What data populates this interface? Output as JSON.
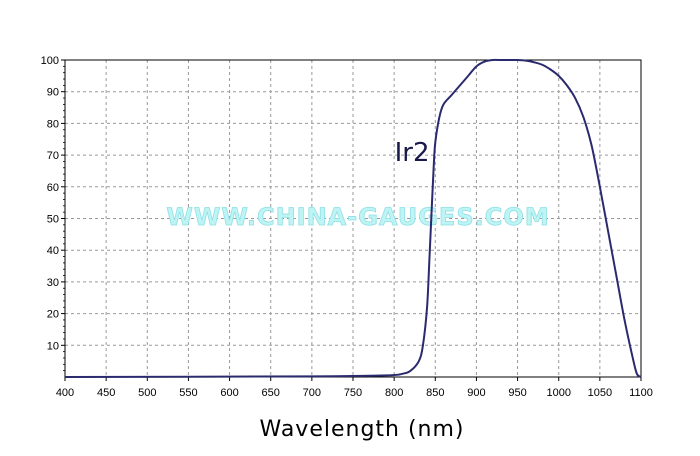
{
  "chart_data": {
    "type": "line",
    "title": "",
    "xlabel": "Wavelength (nm)",
    "ylabel": "",
    "xlim": [
      400,
      1100
    ],
    "ylim": [
      0,
      100
    ],
    "x_ticks": [
      400,
      450,
      500,
      550,
      600,
      650,
      700,
      750,
      800,
      850,
      900,
      950,
      1000,
      1050,
      1100
    ],
    "y_ticks": [
      10,
      20,
      30,
      40,
      50,
      60,
      70,
      80,
      90,
      100
    ],
    "grid": true,
    "annotations": [
      {
        "text": "Ir2",
        "x": 860,
        "y": 70
      }
    ],
    "series": [
      {
        "name": "Ir2",
        "color": "#2a2a6e",
        "x": [
          400,
          700,
          790,
          810,
          820,
          830,
          835,
          840,
          843,
          846,
          848,
          850,
          855,
          860,
          870,
          880,
          890,
          900,
          910,
          920,
          930,
          940,
          950,
          960,
          970,
          980,
          990,
          1000,
          1010,
          1020,
          1030,
          1040,
          1050,
          1060,
          1070,
          1080,
          1090,
          1095,
          1100
        ],
        "values": [
          0,
          0.2,
          0.5,
          1,
          2,
          5,
          10,
          22,
          38,
          55,
          66,
          74,
          82,
          86,
          89,
          92,
          95,
          98,
          99.5,
          100,
          100,
          100,
          100,
          99.8,
          99.3,
          98.5,
          97,
          95,
          92,
          88,
          82,
          73,
          60,
          46,
          32,
          18,
          6,
          1,
          0
        ]
      }
    ]
  },
  "watermark": "WWW.CHINA-GAUGES.COM"
}
